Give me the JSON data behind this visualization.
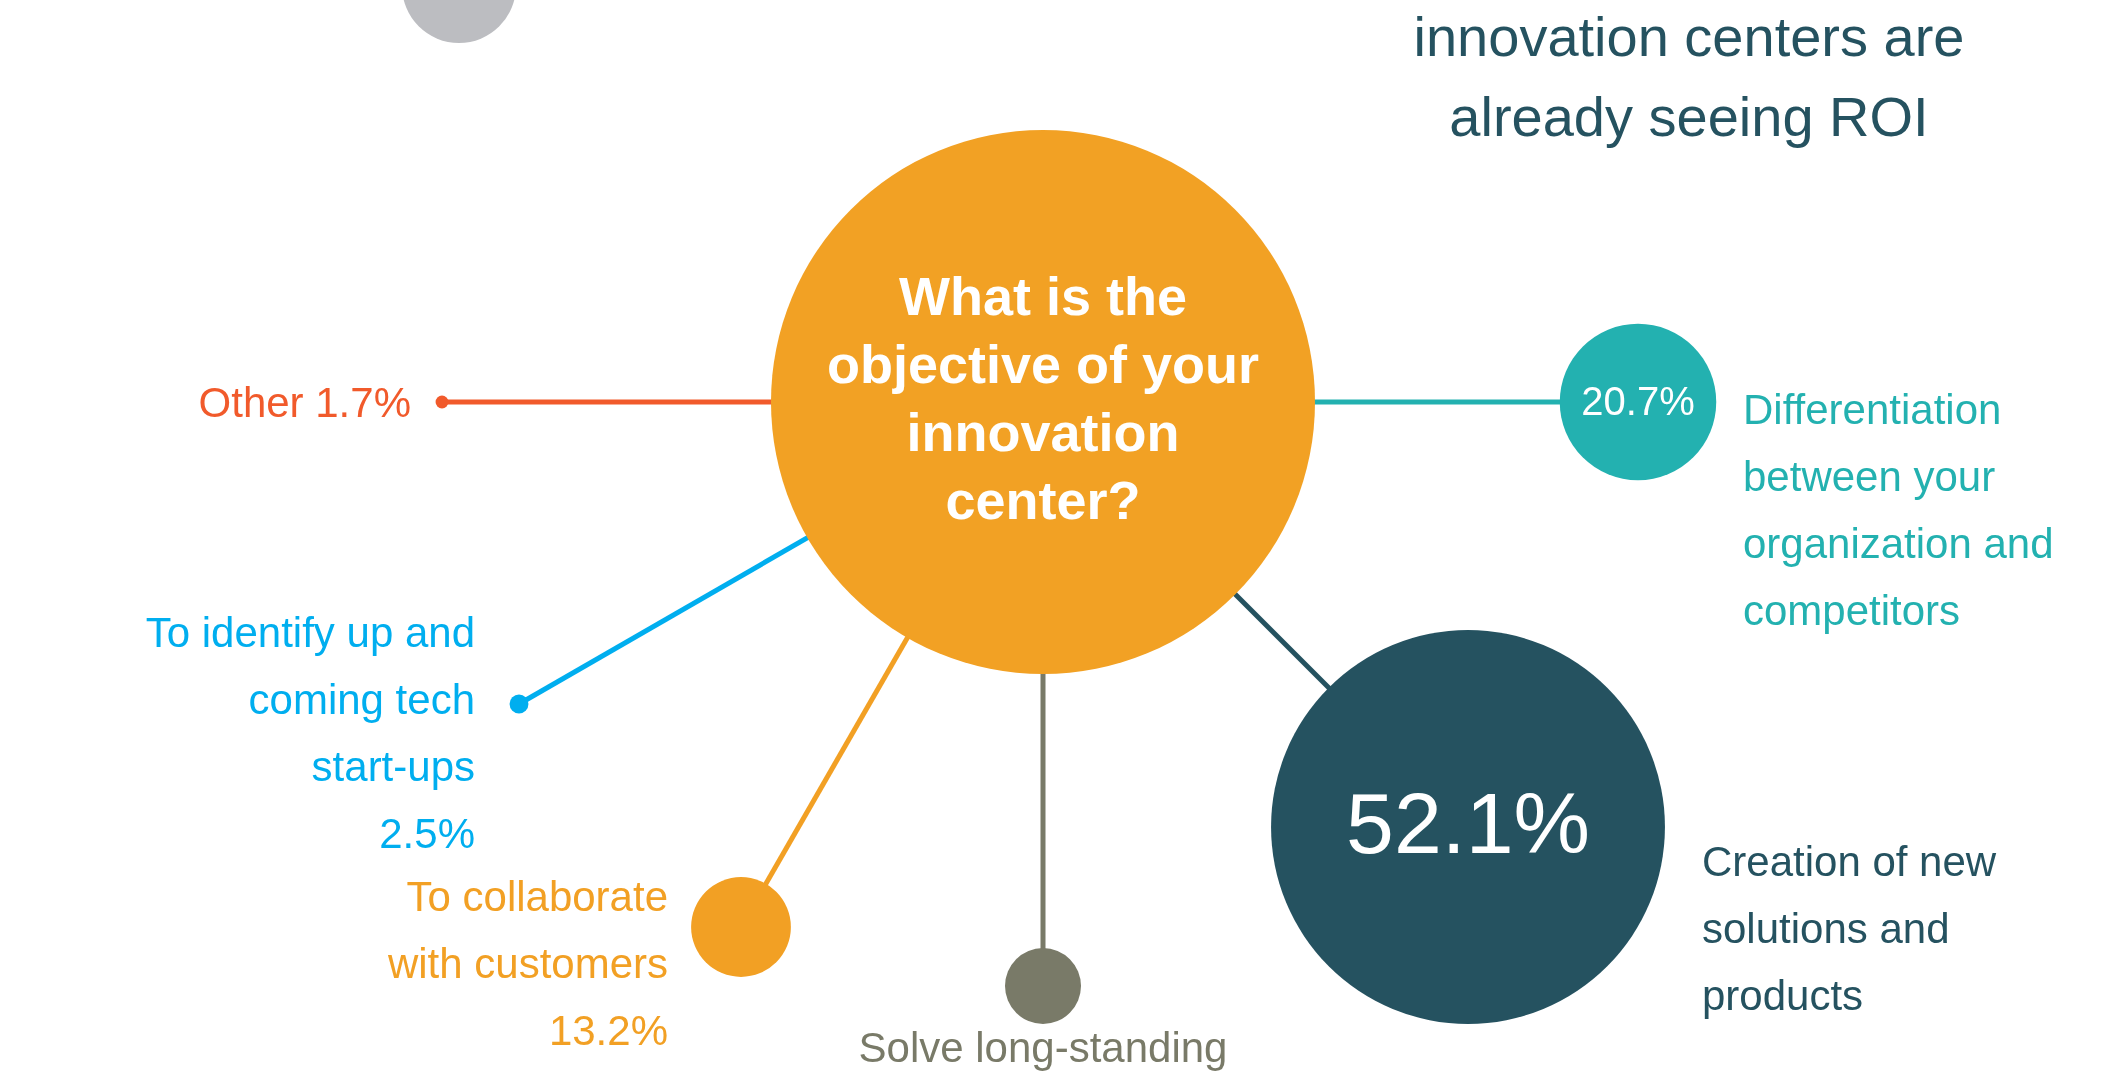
{
  "chart_data": {
    "type": "other",
    "title": "What is the objective of your innovation center?",
    "categories": [
      "Other",
      "To identify up and coming tech start-ups",
      "To collaborate with customers",
      "Solve long-standing",
      "Creation of new solutions and products",
      "Differentiation between your organization and competitors"
    ],
    "values": [
      1.7,
      2.5,
      13.2,
      null,
      52.1,
      20.7
    ],
    "value_labels": [
      "1.7%",
      "2.5%",
      "13.2%",
      null,
      "52.1%",
      "20.7%"
    ],
    "colors": [
      "#f15a2b",
      "#00aeef",
      "#f2a024",
      "#797a68",
      "#255260",
      "#23b1b0"
    ],
    "annotations": [
      "innovation centers are",
      "already seeing ROI"
    ]
  }
}
